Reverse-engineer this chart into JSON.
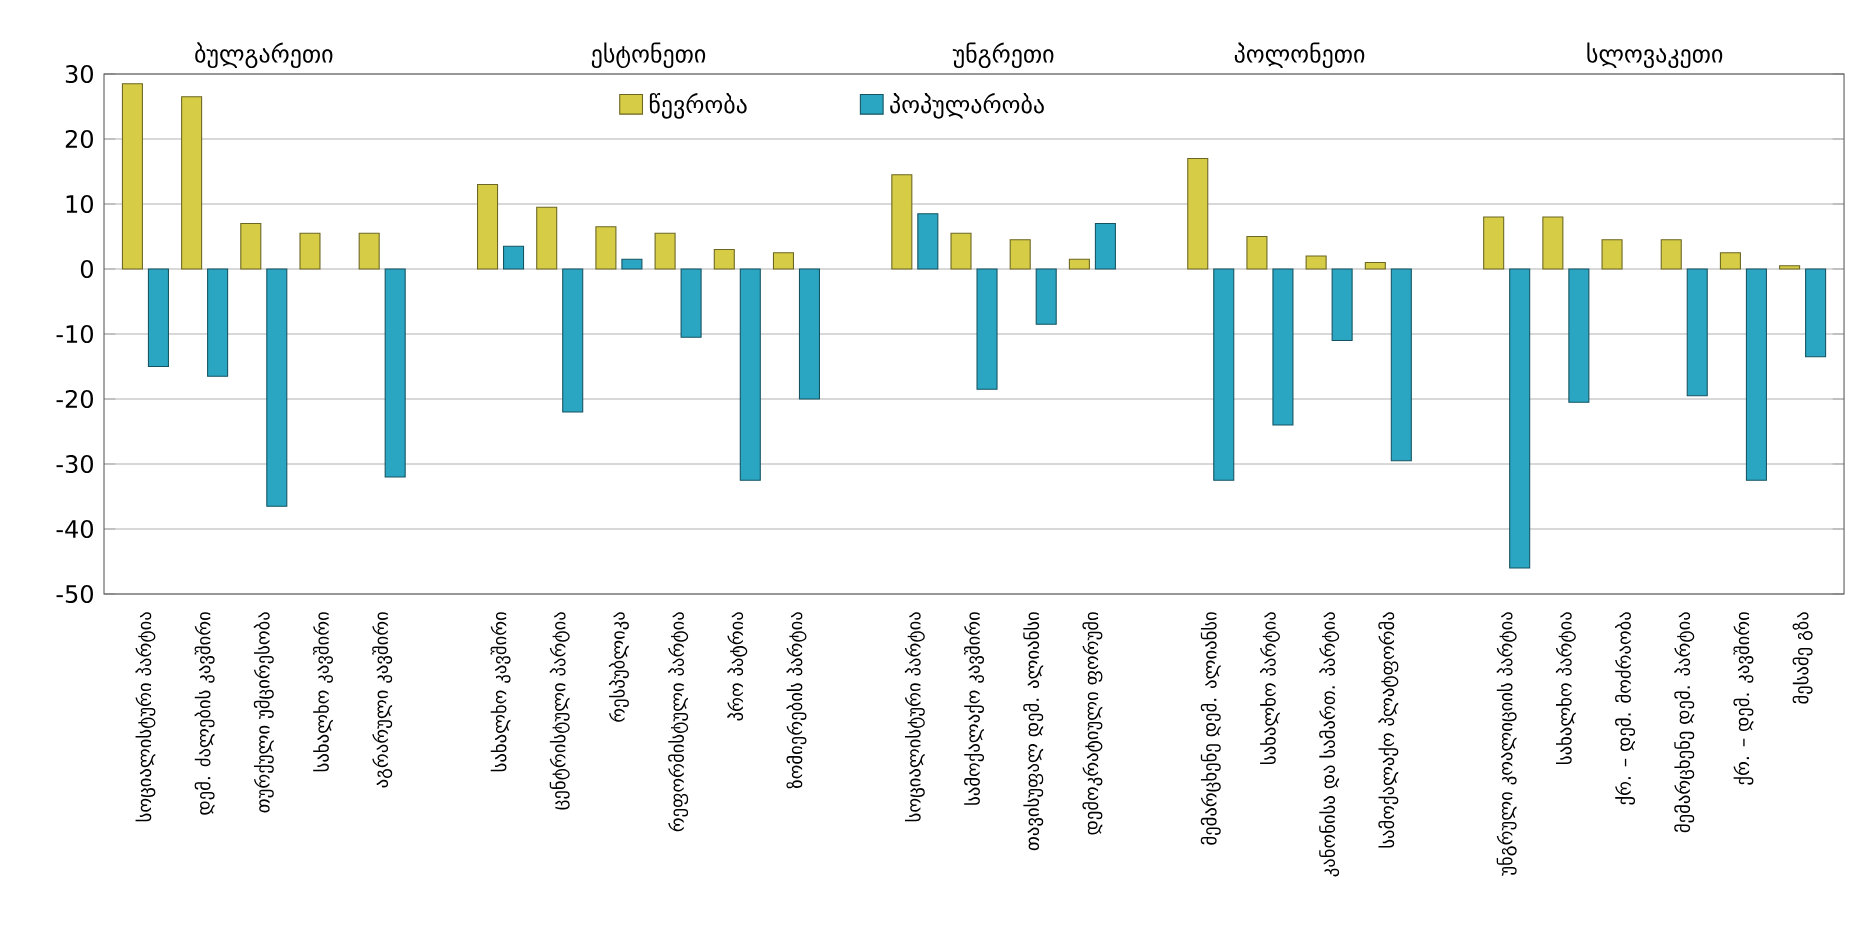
{
  "chart_data": {
    "type": "bar",
    "categories": [
      "სოციალისტური პარტია",
      "დემ. ძალების კავშირი",
      "თურქული უმცირესობა",
      "სახალხო კავშირი",
      "აგრარული კავშირი",
      null,
      "სახალხო კავშირი",
      "ცენტრისტული პარტია",
      "რესპუბლიკა",
      "რეფორმისტული პარტია",
      "პრო პატრია",
      "ზომიერების პარტია",
      null,
      "სოციალისტური პარტია",
      "სამოქალაქო კავშირი",
      "თავისუფალ დემ. ალიანსი",
      "დემოკრატიული ფორუმი",
      null,
      "მემარცხენე დემ. ალიანსი",
      "სახალხო პარტია",
      "კანონისა და სამართ. პარტია",
      "სამოქალაქო პლატფორმა",
      null,
      "უნგრული კოალიციის პარტია",
      "სახალხო პარტია",
      "ქრ. – დემ. მოძრაობა",
      "მემარცხენე დემ. პარტია",
      "ქრ. – დემ. კავშირი",
      "მესამე გზა"
    ],
    "series": [
      {
        "name": "წევრობა",
        "color": "#d6cc45",
        "values": [
          28.5,
          26.5,
          7,
          5.5,
          5.5,
          null,
          13,
          9.5,
          6.5,
          5.5,
          3,
          2.5,
          null,
          14.5,
          5.5,
          4.5,
          1.5,
          null,
          17,
          5,
          2,
          1,
          null,
          8,
          8,
          4.5,
          4.5,
          2.5,
          0.5
        ]
      },
      {
        "name": "პოპულარობა",
        "color": "#2ba6c2",
        "values": [
          -15,
          -16.5,
          -36.5,
          null,
          -32,
          null,
          3.5,
          -22,
          1.5,
          -10.5,
          -32.5,
          -20,
          null,
          8.5,
          -18.5,
          -8.5,
          7,
          null,
          -32.5,
          -24,
          -11,
          -29.5,
          null,
          -46,
          -20.5,
          null,
          -19.5,
          -32.5,
          -13.5
        ]
      }
    ],
    "annotations": [
      "ბულგარეთი",
      "ესტონეთი",
      "უნგრეთი",
      "პოლონეთი",
      "სლოვაკეთი"
    ],
    "ylim": [
      -50,
      30
    ],
    "yticks": [
      -50,
      -40,
      -30,
      -20,
      -10,
      0,
      10,
      20,
      30
    ],
    "grid": "y",
    "legend": "top"
  }
}
